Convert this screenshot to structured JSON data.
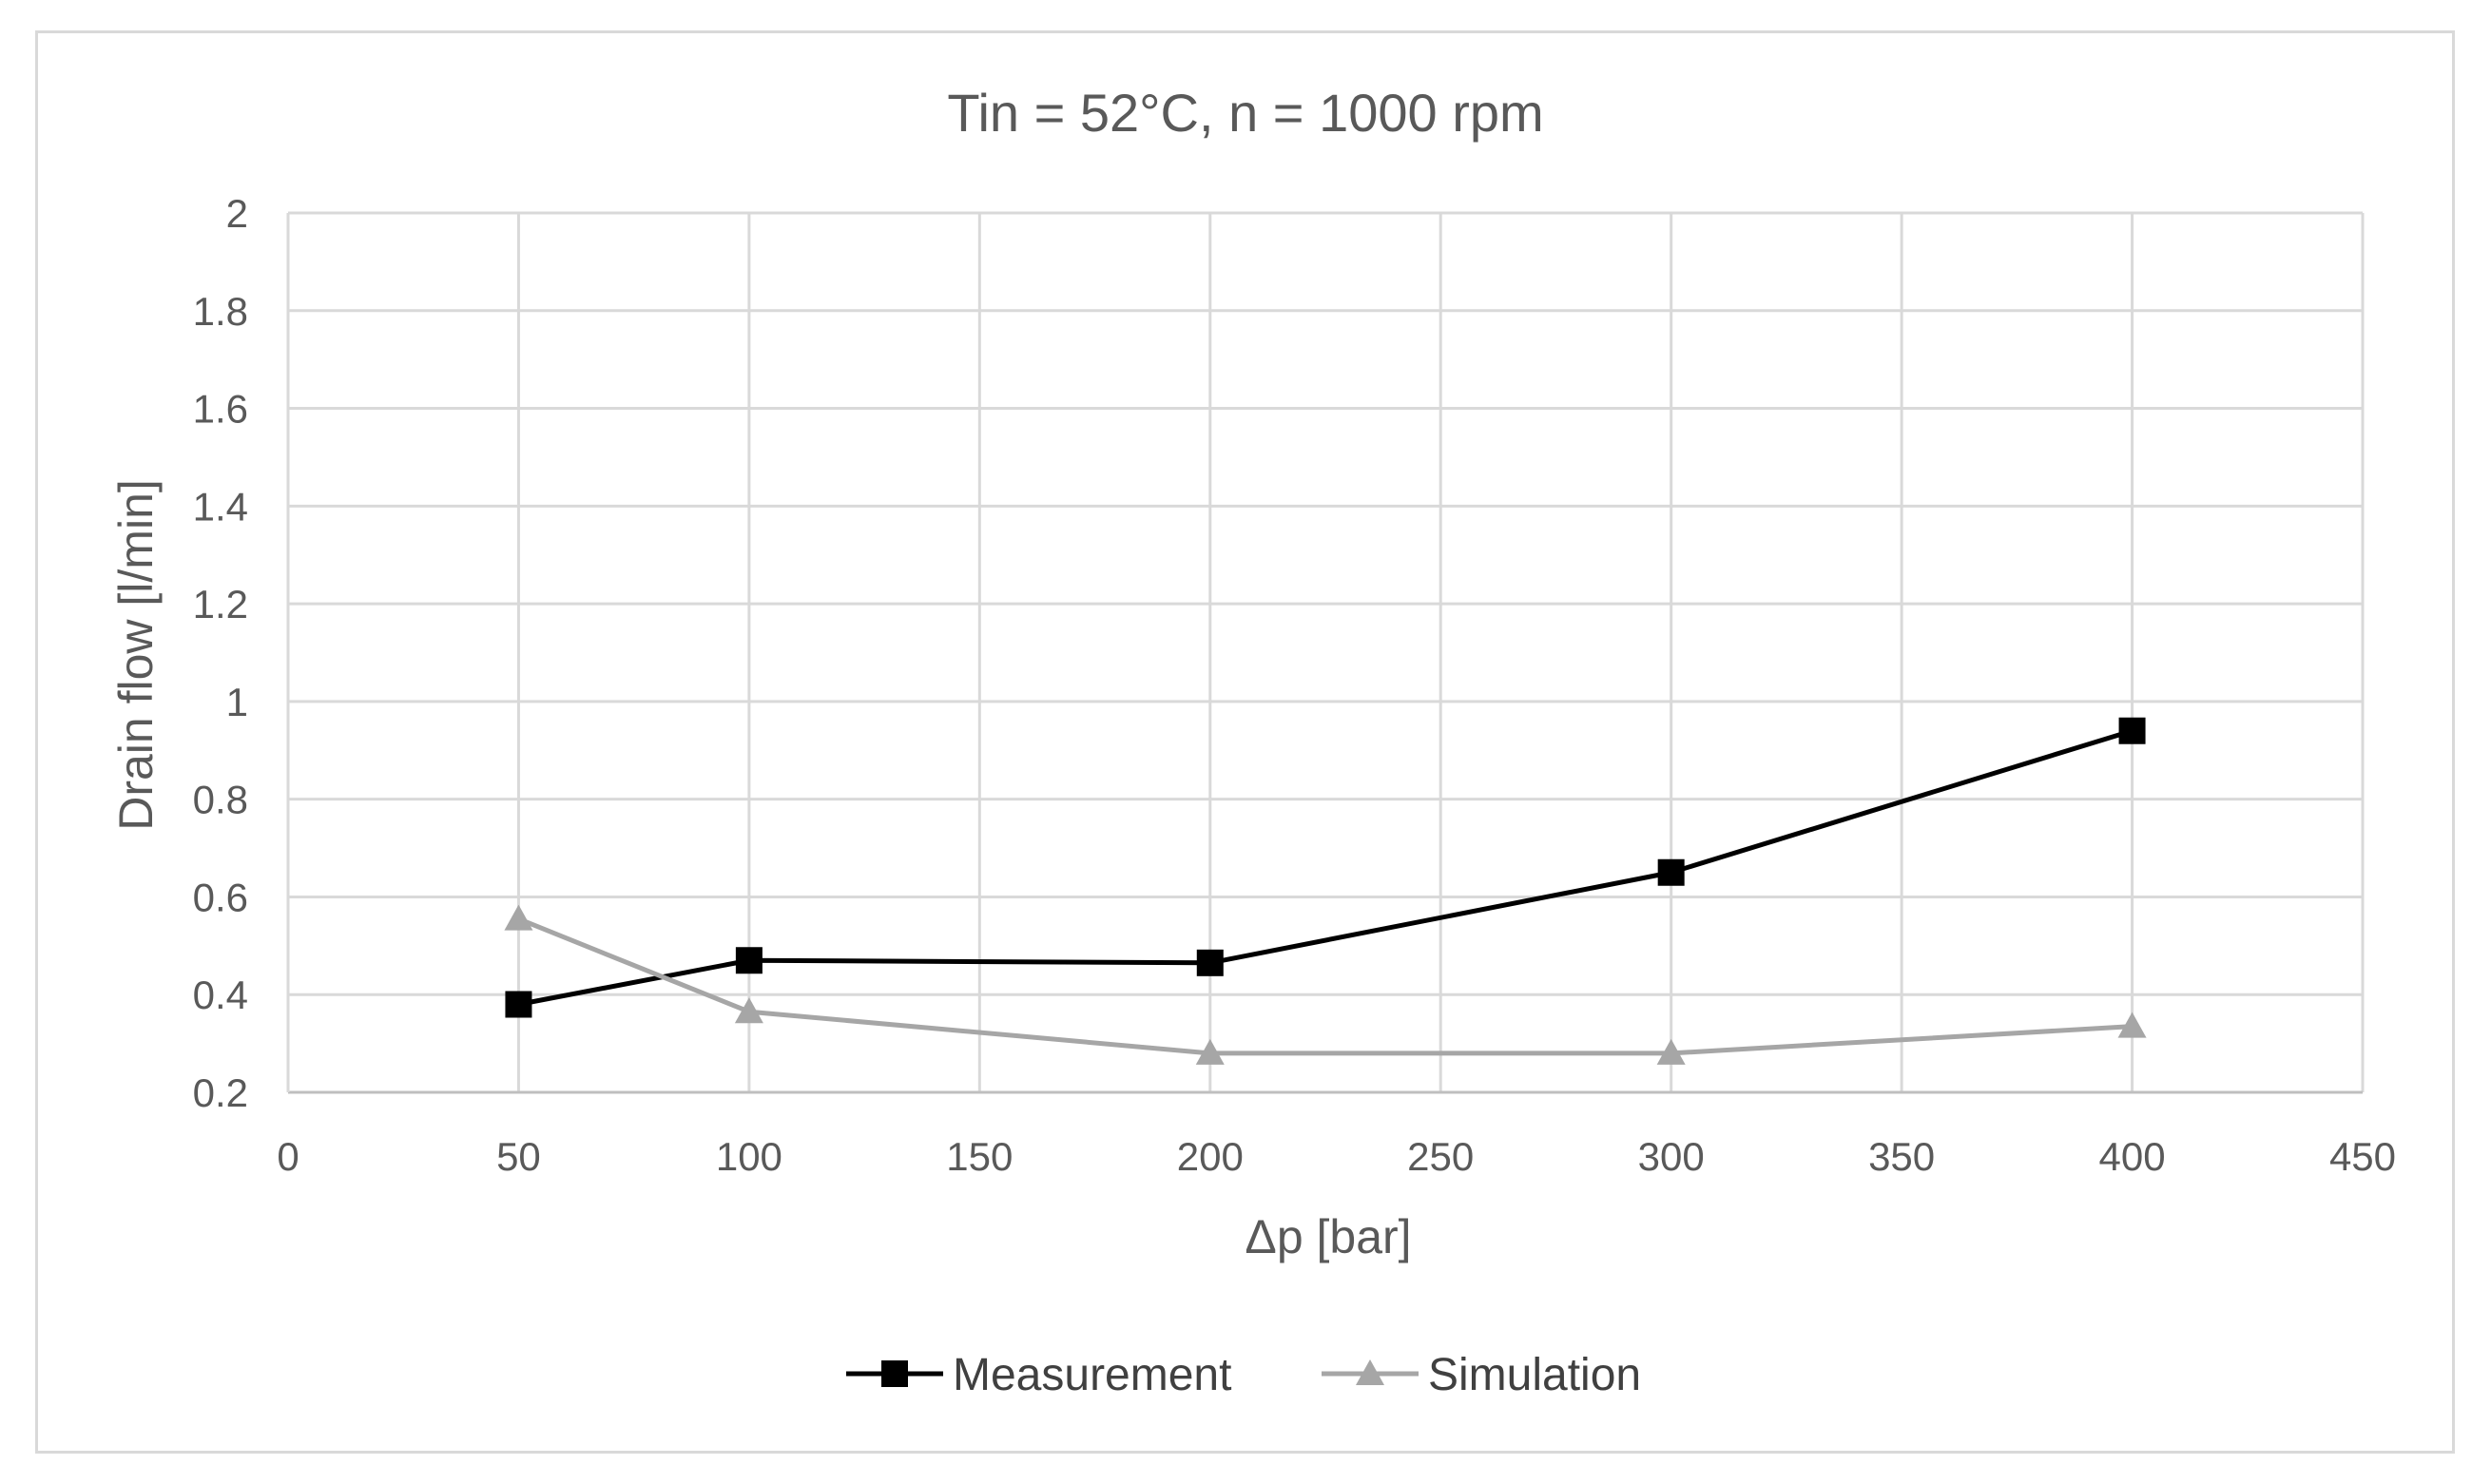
{
  "chart_data": {
    "type": "line",
    "title": "Tin = 52°C, n = 1000 rpm",
    "xlabel": "Δp [bar]",
    "ylabel": "Drain flow [l/min]",
    "xlim": [
      0,
      450
    ],
    "ylim": [
      0.2,
      2
    ],
    "xticks": [
      0,
      50,
      100,
      150,
      200,
      250,
      300,
      350,
      400,
      450
    ],
    "yticks": [
      0.2,
      0.4,
      0.6,
      0.8,
      1,
      1.2,
      1.4,
      1.6,
      1.8,
      2
    ],
    "grid": true,
    "legend_position": "bottom",
    "series": [
      {
        "name": "Measurement",
        "color": "#000000",
        "marker": "square",
        "x": [
          50,
          100,
          200,
          300,
          400
        ],
        "y": [
          0.38,
          0.47,
          0.465,
          0.65,
          0.94
        ]
      },
      {
        "name": "Simulation",
        "color": "#a6a6a6",
        "marker": "triangle",
        "x": [
          50,
          100,
          200,
          300,
          400
        ],
        "y": [
          0.555,
          0.365,
          0.28,
          0.28,
          0.335
        ]
      }
    ]
  }
}
